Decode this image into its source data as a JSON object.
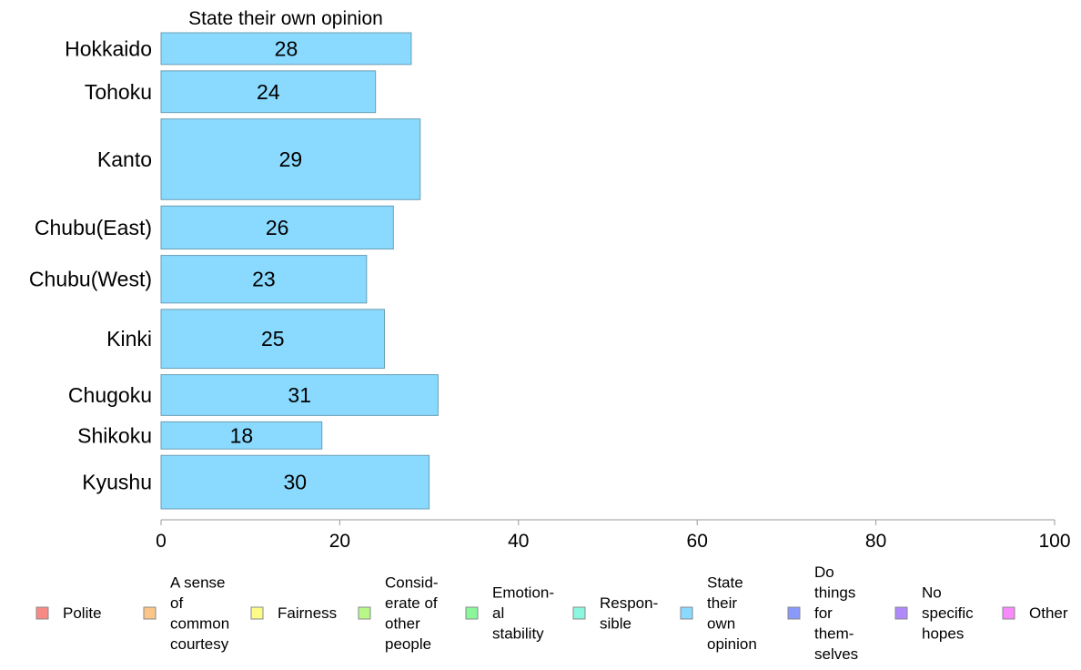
{
  "chart_data": {
    "type": "bar",
    "orientation": "horizontal",
    "title": "State their own opinion",
    "categories": [
      "Hokkaido",
      "Tohoku",
      "Kanto",
      "Chubu(East)",
      "Chubu(West)",
      "Kinki",
      "Chugoku",
      "Shikoku",
      "Kyushu"
    ],
    "values": [
      28,
      24,
      29,
      26,
      23,
      25,
      31,
      18,
      30
    ],
    "bar_weights": [
      0.7,
      0.92,
      1.78,
      0.95,
      1.05,
      1.3,
      0.9,
      0.6,
      1.18
    ],
    "xlim": [
      0,
      100
    ],
    "xticks": [
      0,
      20,
      40,
      60,
      80,
      100
    ],
    "grid": false,
    "bar_color": "#8ad9ff",
    "bar_stroke": "#6a9fb5",
    "legend": {
      "placement": "bottom",
      "items": [
        {
          "label": [
            "Polite"
          ],
          "color": "#f88a86"
        },
        {
          "label": [
            "A sense",
            "of",
            "common",
            "courtesy"
          ],
          "color": "#fcc68a"
        },
        {
          "label": [
            "Fairness"
          ],
          "color": "#fcfc8a"
        },
        {
          "label": [
            "Consid-",
            "erate of",
            "other",
            "people"
          ],
          "color": "#b8f88a"
        },
        {
          "label": [
            "Emotion-",
            "al",
            "stability"
          ],
          "color": "#8af89a"
        },
        {
          "label": [
            "Respon-",
            "sible"
          ],
          "color": "#8af8de"
        },
        {
          "label": [
            "State",
            "their",
            "own",
            "opinion"
          ],
          "color": "#8ad9ff"
        },
        {
          "label": [
            "Do",
            "things",
            "for",
            "them-",
            "selves"
          ],
          "color": "#8a9afc"
        },
        {
          "label": [
            "No",
            "specific",
            "hopes"
          ],
          "color": "#b08afc"
        },
        {
          "label": [
            "Other"
          ],
          "color": "#f88afc"
        }
      ]
    }
  }
}
